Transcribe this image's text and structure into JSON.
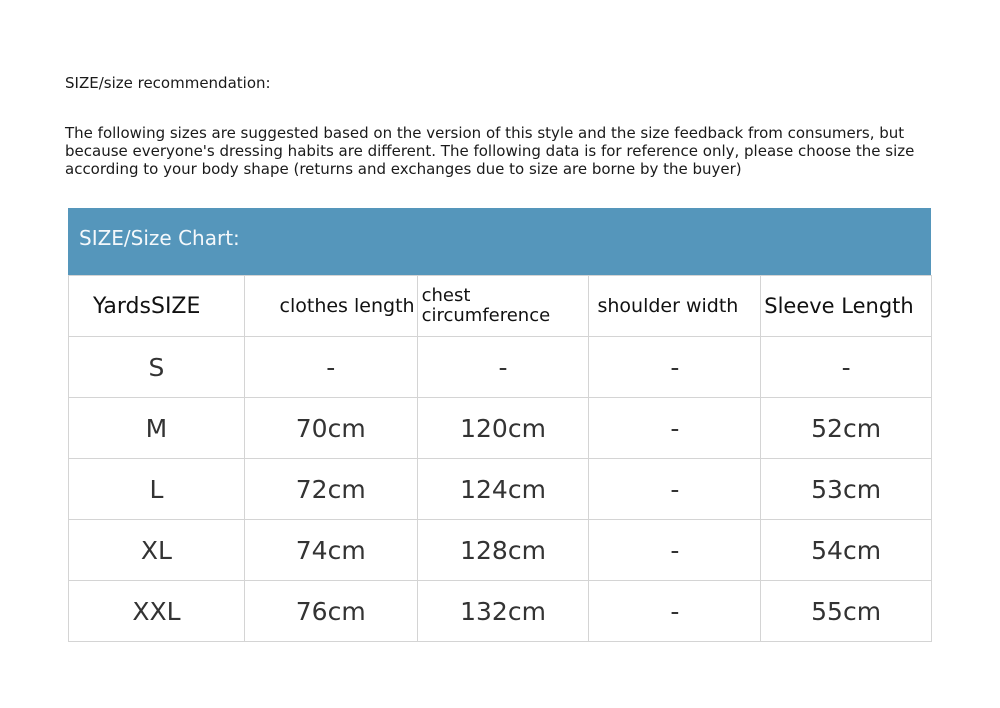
{
  "title": "SIZE/size recommendation:",
  "intro": "The following sizes are suggested based on the version of this style and the size feedback from consumers, but because everyone's dressing habits are different. The following data is for reference only, please choose the size according to your body shape (returns and exchanges due to size are borne by the buyer)",
  "chart_title": "SIZE/Size Chart:",
  "header_color": "#5596bb",
  "columns": [
    "YardsSIZE",
    "clothes length",
    "chest circumference",
    "shoulder width",
    "Sleeve Length"
  ],
  "rows": [
    [
      "S",
      "-",
      "-",
      "-",
      "-"
    ],
    [
      "M",
      "70cm",
      "120cm",
      "-",
      "52cm"
    ],
    [
      "L",
      "72cm",
      "124cm",
      "-",
      "53cm"
    ],
    [
      "XL",
      "74cm",
      "128cm",
      "-",
      "54cm"
    ],
    [
      "XXL",
      "76cm",
      "132cm",
      "-",
      "55cm"
    ]
  ]
}
